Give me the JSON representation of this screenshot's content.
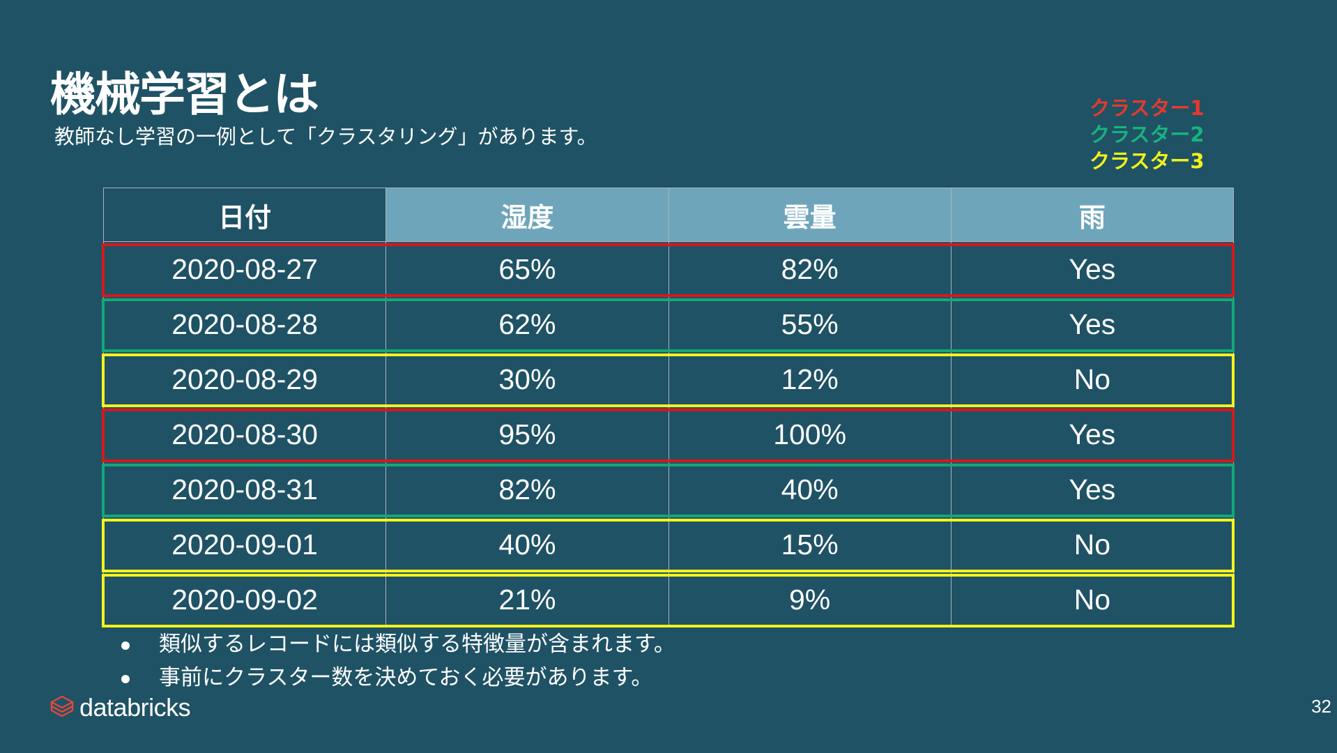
{
  "slide": {
    "title": "機械学習とは",
    "subtitle": "教師なし学習の一例として「クラスタリング」があります。",
    "page_number": "32"
  },
  "legend": [
    {
      "label": "クラスター1",
      "color": "#e8392b"
    },
    {
      "label": "クラスター2",
      "color": "#19b27e"
    },
    {
      "label": "クラスター3",
      "color": "#f2f21b"
    }
  ],
  "table": {
    "headers": [
      "日付",
      "湿度",
      "雲量",
      "雨"
    ],
    "rows": [
      {
        "cells": [
          "2020-08-27",
          "65%",
          "82%",
          "Yes"
        ],
        "cluster": 1
      },
      {
        "cells": [
          "2020-08-28",
          "62%",
          "55%",
          "Yes"
        ],
        "cluster": 2
      },
      {
        "cells": [
          "2020-08-29",
          "30%",
          "12%",
          "No"
        ],
        "cluster": 3
      },
      {
        "cells": [
          "2020-08-30",
          "95%",
          "100%",
          "Yes"
        ],
        "cluster": 1
      },
      {
        "cells": [
          "2020-08-31",
          "82%",
          "40%",
          "Yes"
        ],
        "cluster": 2
      },
      {
        "cells": [
          "2020-09-01",
          "40%",
          "15%",
          "No"
        ],
        "cluster": 3
      },
      {
        "cells": [
          "2020-09-02",
          "21%",
          "9%",
          "No"
        ],
        "cluster": 3
      }
    ]
  },
  "cluster_colors": {
    "1": "#d8171b",
    "2": "#13a87a",
    "3": "#f4f21c"
  },
  "bullets": [
    "類似するレコードには類似する特徴量が含まれます。",
    "事前にクラスター数を決めておく必要があります。"
  ],
  "logo": {
    "text": "databricks",
    "icon": "databricks-logo-icon"
  }
}
